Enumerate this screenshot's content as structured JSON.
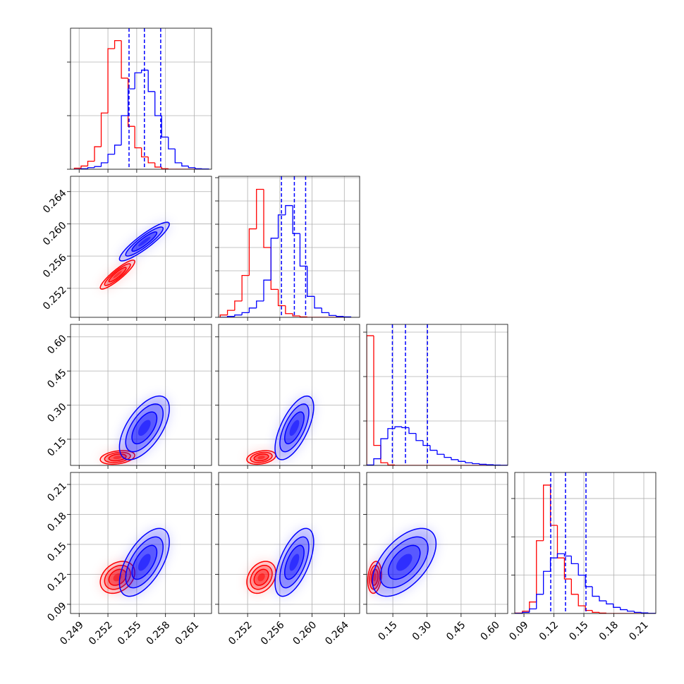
{
  "chart_data": {
    "type": "corner",
    "parameters": [
      {
        "lim": [
          0.2481,
          0.2628
        ],
        "ticks": [
          0.249,
          0.252,
          0.255,
          0.258,
          0.261
        ]
      },
      {
        "lim": [
          0.2484,
          0.2659
        ],
        "ticks": [
          0.252,
          0.256,
          {
            "value": 0.26,
            "label": "0.260"
          },
          0.264
        ]
      },
      {
        "lim": [
          0.035,
          0.655
        ],
        "ticks": [
          0.15,
          {
            "value": 0.3,
            "label": "0.30"
          },
          0.45,
          {
            "value": 0.6,
            "label": "0.60"
          }
        ]
      },
      {
        "lim": [
          0.0808,
          0.222
        ],
        "ticks": [
          0.09,
          0.12,
          0.15,
          0.18,
          0.21
        ]
      }
    ],
    "series": [
      {
        "color": "#ff0000",
        "mean": [
          0.253,
          0.2537,
          0.07,
          0.117
        ],
        "sd": [
          0.0009,
          0.0009,
          0.015,
          0.008
        ],
        "corr": [
          [
            1,
            0.9,
            0.3,
            0.3
          ],
          [
            0.9,
            1,
            0.3,
            0.3
          ],
          [
            0.3,
            0.3,
            1,
            0.2
          ],
          [
            0.3,
            0.3,
            0.2,
            1
          ]
        ]
      },
      {
        "color": "#0000ff",
        "mean": [
          0.2558,
          0.2578,
          0.2,
          0.132
        ],
        "sd": [
          0.0013,
          0.0012,
          0.07,
          0.017
        ],
        "corr": [
          [
            1,
            0.9,
            0.6,
            0.6
          ],
          [
            0.9,
            1,
            0.65,
            0.6
          ],
          [
            0.6,
            0.65,
            1,
            0.55
          ],
          [
            0.6,
            0.6,
            0.55,
            1
          ]
        ]
      }
    ],
    "contour_levels": [
      0.5,
      1,
      1.5,
      2
    ],
    "quantile_color": "#0000ff",
    "histograms": [
      {
        "bins": [
          0.2485,
          0.2492,
          0.2499,
          0.2506,
          0.2513,
          0.252,
          0.2527,
          0.2534,
          0.2541,
          0.2548,
          0.2555,
          0.2562,
          0.2569,
          0.2576,
          0.2583,
          0.259,
          0.2597,
          0.2604,
          0.2611,
          0.2618,
          0.2625
        ],
        "ylim": [
          0,
          2632
        ],
        "yticks": [
          0,
          1000,
          2000
        ],
        "series": [
          {
            "color": "#ff0000",
            "values": [
              20,
              60,
              150,
              420,
              1050,
              2250,
              2400,
              1700,
              800,
              400,
              230,
              120,
              40,
              10,
              0,
              0,
              0,
              0,
              0,
              0
            ]
          },
          {
            "color": "#0000ff",
            "values": [
              0,
              10,
              30,
              50,
              120,
              280,
              450,
              1000,
              1500,
              1800,
              1850,
              1450,
              1000,
              600,
              380,
              120,
              60,
              30,
              10,
              5
            ]
          }
        ],
        "quantiles": [
          0.2542,
          0.2558,
          0.2575
        ]
      },
      {
        "bins": [
          0.2486,
          0.2495,
          0.2504,
          0.2513,
          0.2522,
          0.2531,
          0.254,
          0.2549,
          0.2558,
          0.2567,
          0.2576,
          0.2585,
          0.2594,
          0.2603,
          0.2612,
          0.2621,
          0.263,
          0.2639,
          0.2648
        ],
        "ylim": [
          0,
          3030
        ],
        "yticks": [
          0,
          500,
          1000,
          1500,
          2000,
          2500,
          3000
        ],
        "series": [
          {
            "color": "#ff0000",
            "values": [
              50,
              150,
              350,
              900,
              1900,
              2750,
              1500,
              600,
              250,
              80,
              30,
              10,
              0,
              0,
              0,
              0,
              0,
              0
            ]
          },
          {
            "color": "#0000ff",
            "values": [
              0,
              20,
              50,
              100,
              200,
              350,
              800,
              1700,
              2200,
              2400,
              1800,
              1100,
              450,
              200,
              100,
              40,
              20,
              10
            ]
          }
        ],
        "quantiles": [
          0.2562,
          0.2578,
          0.2592
        ]
      },
      {
        "bins": [
          0.035,
          0.066,
          0.097,
          0.128,
          0.159,
          0.19,
          0.221,
          0.252,
          0.283,
          0.314,
          0.345,
          0.376,
          0.407,
          0.438,
          0.469,
          0.5,
          0.531,
          0.562,
          0.593,
          0.624,
          0.655
        ],
        "ylim": [
          0,
          3175
        ],
        "yticks": [
          0,
          1000,
          2000,
          3000
        ],
        "series": [
          {
            "color": "#ff0000",
            "values": [
              2920,
              450,
              60,
              10,
              0,
              0,
              0,
              0,
              0,
              0,
              0,
              0,
              0,
              0,
              0,
              0,
              0,
              0,
              0,
              0
            ]
          },
          {
            "color": "#0000ff",
            "values": [
              10,
              150,
              600,
              830,
              870,
              850,
              720,
              560,
              450,
              340,
              250,
              180,
              130,
              90,
              60,
              40,
              25,
              15,
              8,
              4
            ]
          }
        ],
        "quantiles": [
          0.148,
          0.2055,
          0.302
        ]
      },
      {
        "bins": [
          0.0815,
          0.0885,
          0.0955,
          0.1025,
          0.1095,
          0.1165,
          0.1235,
          0.1305,
          0.1375,
          0.1445,
          0.1515,
          0.1585,
          0.1655,
          0.1725,
          0.1795,
          0.1865,
          0.1935,
          0.2005,
          0.2075,
          0.2145,
          0.2215
        ],
        "ylim": [
          0,
          3680
        ],
        "yticks": [
          0,
          1000,
          2000,
          3000
        ],
        "series": [
          {
            "color": "#ff0000",
            "values": [
              10,
              60,
              300,
              1900,
              3350,
              2300,
              1450,
              900,
              500,
              200,
              80,
              30,
              10,
              0,
              0,
              0,
              0,
              0,
              0,
              0
            ]
          },
          {
            "color": "#0000ff",
            "values": [
              5,
              30,
              120,
              500,
              1100,
              1450,
              1560,
              1500,
              1300,
              1000,
              700,
              450,
              330,
              250,
              160,
              100,
              60,
              30,
              15,
              5
            ]
          }
        ],
        "quantiles": [
          0.1168,
          0.1316,
          0.1521
        ]
      }
    ]
  }
}
